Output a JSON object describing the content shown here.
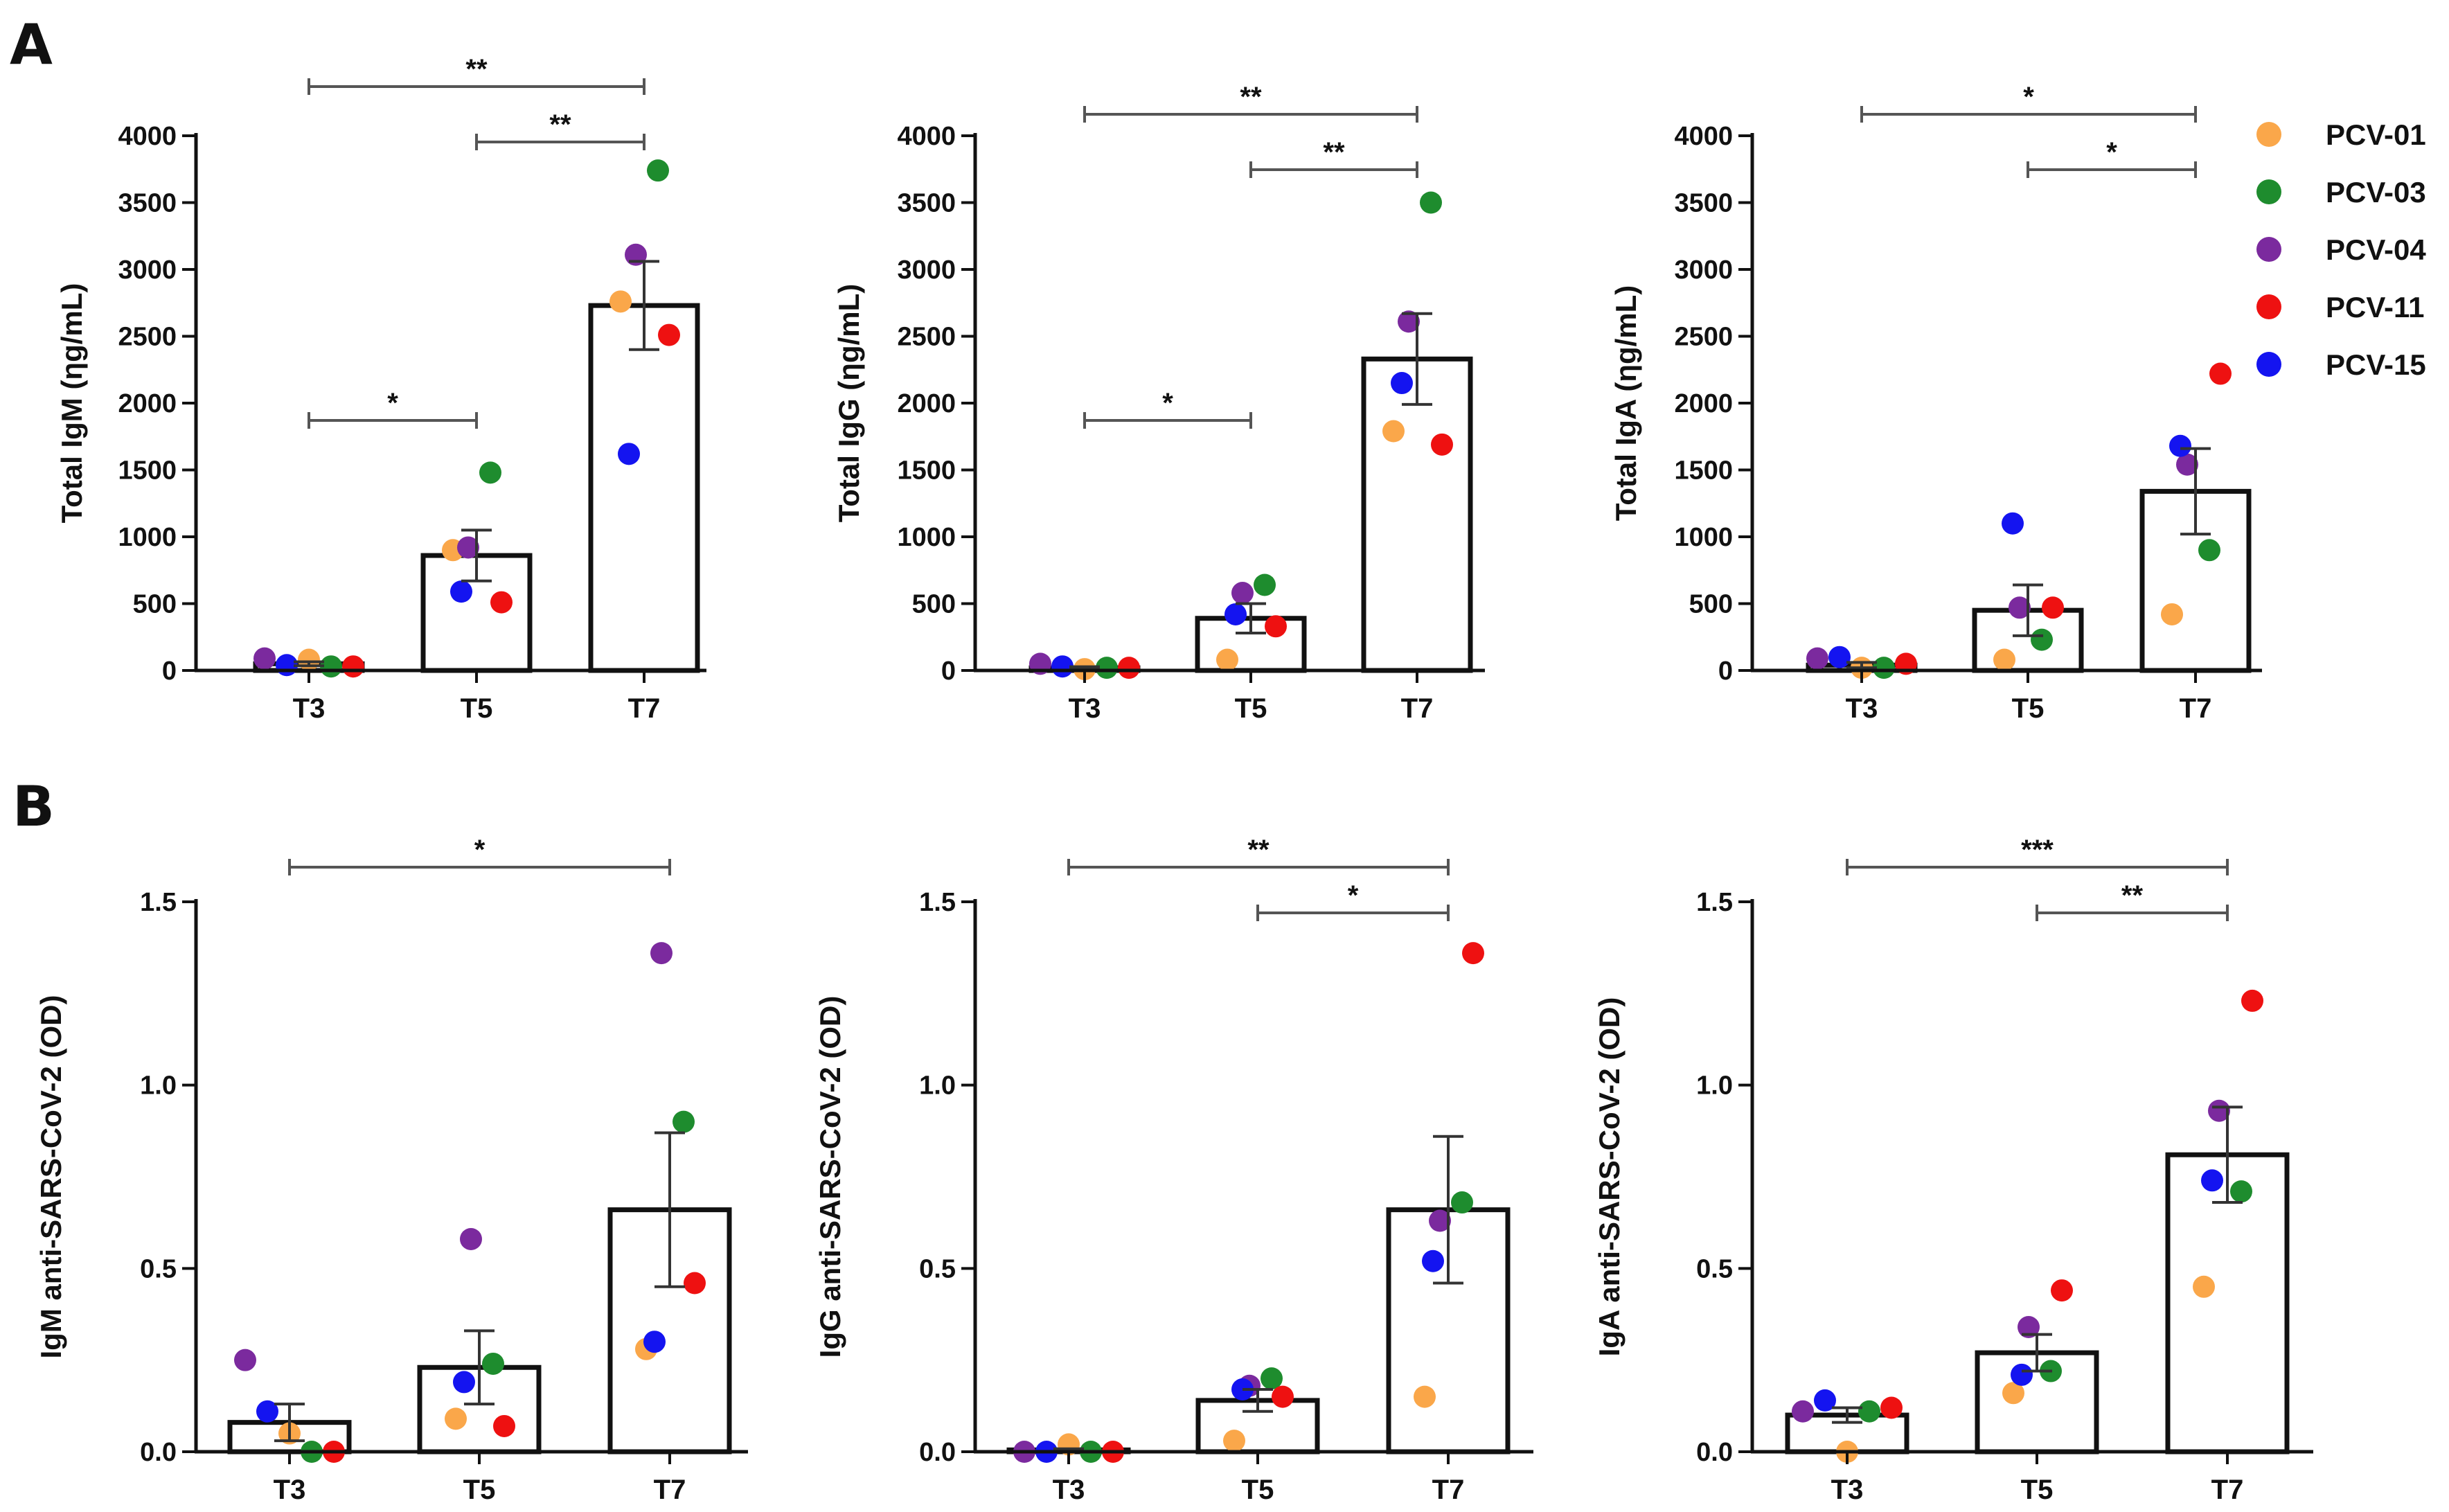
{
  "panel_labels": [
    "A",
    "B"
  ],
  "legend": [
    {
      "name": "PCV-01",
      "color": "#FAA74A"
    },
    {
      "name": "PCV-03",
      "color": "#1E8C2E"
    },
    {
      "name": "PCV-04",
      "color": "#7B2A9E"
    },
    {
      "name": "PCV-11",
      "color": "#EE1111"
    },
    {
      "name": "PCV-15",
      "color": "#1414F0"
    }
  ],
  "chart_data": [
    {
      "type": "bar",
      "panel": "A",
      "ylabel": "Total IgM (ηg/mL)",
      "categories": [
        "T3",
        "T5",
        "T7"
      ],
      "ylim": [
        0,
        4000
      ],
      "yticks": [
        0,
        500,
        1000,
        1500,
        2000,
        2500,
        3000,
        3500,
        4000
      ],
      "tick_labels": [
        "0",
        "500",
        "1000",
        "1500",
        "2000",
        "2500",
        "3000",
        "3500",
        "4000"
      ],
      "means": [
        50,
        860,
        2730
      ],
      "sem": [
        15,
        190,
        330
      ],
      "points": [
        {
          "PCV-01": 80,
          "PCV-03": 30,
          "PCV-04": 90,
          "PCV-11": 30,
          "PCV-15": 40
        },
        {
          "PCV-01": 900,
          "PCV-03": 1480,
          "PCV-04": 920,
          "PCV-11": 510,
          "PCV-15": 590
        },
        {
          "PCV-01": 2760,
          "PCV-03": 3740,
          "PCV-04": 3110,
          "PCV-11": 2510,
          "PCV-15": 1620
        }
      ],
      "significance": [
        {
          "from": "T3",
          "to": "T7",
          "label": "**"
        },
        {
          "from": "T5",
          "to": "T7",
          "label": "**"
        },
        {
          "from": "T3",
          "to": "T5",
          "label": "*"
        }
      ]
    },
    {
      "type": "bar",
      "panel": "A",
      "ylabel": "Total IgG (ηg/mL)",
      "categories": [
        "T3",
        "T5",
        "T7"
      ],
      "ylim": [
        0,
        4000
      ],
      "yticks": [
        0,
        500,
        1000,
        1500,
        2000,
        2500,
        3000,
        3500,
        4000
      ],
      "tick_labels": [
        "0",
        "500",
        "1000",
        "1500",
        "2000",
        "2500",
        "3000",
        "3500",
        "4000"
      ],
      "means": [
        20,
        390,
        2330
      ],
      "sem": [
        8,
        110,
        340
      ],
      "points": [
        {
          "PCV-01": 10,
          "PCV-03": 20,
          "PCV-04": 50,
          "PCV-11": 20,
          "PCV-15": 30
        },
        {
          "PCV-01": 80,
          "PCV-03": 640,
          "PCV-04": 580,
          "PCV-11": 330,
          "PCV-15": 420
        },
        {
          "PCV-01": 1790,
          "PCV-03": 3500,
          "PCV-04": 2610,
          "PCV-11": 1690,
          "PCV-15": 2150
        }
      ],
      "significance": [
        {
          "from": "T3",
          "to": "T7",
          "label": "**"
        },
        {
          "from": "T5",
          "to": "T7",
          "label": "**"
        },
        {
          "from": "T3",
          "to": "T5",
          "label": "*"
        }
      ]
    },
    {
      "type": "bar",
      "panel": "A",
      "ylabel": "Total IgA (ηg/mL)",
      "categories": [
        "T3",
        "T5",
        "T7"
      ],
      "ylim": [
        0,
        4000
      ],
      "yticks": [
        0,
        500,
        1000,
        1500,
        2000,
        2500,
        3000,
        3500,
        4000
      ],
      "tick_labels": [
        "0",
        "500",
        "1000",
        "1500",
        "2000",
        "2500",
        "3000",
        "3500",
        "4000"
      ],
      "means": [
        40,
        450,
        1340
      ],
      "sem": [
        20,
        190,
        320
      ],
      "points": [
        {
          "PCV-01": 20,
          "PCV-03": 20,
          "PCV-04": 90,
          "PCV-11": 50,
          "PCV-15": 100
        },
        {
          "PCV-01": 80,
          "PCV-03": 230,
          "PCV-04": 470,
          "PCV-11": 470,
          "PCV-15": 1100
        },
        {
          "PCV-01": 420,
          "PCV-03": 900,
          "PCV-04": 1540,
          "PCV-11": 2220,
          "PCV-15": 1680
        }
      ],
      "significance": [
        {
          "from": "T3",
          "to": "T7",
          "label": "*"
        },
        {
          "from": "T5",
          "to": "T7",
          "label": "*"
        }
      ]
    },
    {
      "type": "bar",
      "panel": "B",
      "ylabel": "IgM anti-SARS-CoV-2 (OD)",
      "categories": [
        "T3",
        "T5",
        "T7"
      ],
      "ylim": [
        0,
        1.5
      ],
      "yticks": [
        0,
        0.5,
        1.0,
        1.5
      ],
      "tick_labels": [
        "0.0",
        "0.5",
        "1.0",
        "1.5"
      ],
      "means": [
        0.08,
        0.23,
        0.66
      ],
      "sem": [
        0.05,
        0.1,
        0.21
      ],
      "points": [
        {
          "PCV-01": 0.05,
          "PCV-03": 0.0,
          "PCV-04": 0.25,
          "PCV-11": 0.0,
          "PCV-15": 0.11
        },
        {
          "PCV-01": 0.09,
          "PCV-03": 0.24,
          "PCV-04": 0.58,
          "PCV-11": 0.07,
          "PCV-15": 0.19
        },
        {
          "PCV-01": 0.28,
          "PCV-03": 0.9,
          "PCV-04": 1.36,
          "PCV-11": 0.46,
          "PCV-15": 0.3
        }
      ],
      "significance": [
        {
          "from": "T3",
          "to": "T7",
          "label": "*"
        }
      ]
    },
    {
      "type": "bar",
      "panel": "B",
      "ylabel": "IgG anti-SARS-CoV-2 (OD)",
      "categories": [
        "T3",
        "T5",
        "T7"
      ],
      "ylim": [
        0,
        1.5
      ],
      "yticks": [
        0,
        0.5,
        1.0,
        1.5
      ],
      "tick_labels": [
        "0.0",
        "0.5",
        "1.0",
        "1.5"
      ],
      "means": [
        0.005,
        0.14,
        0.66
      ],
      "sem": [
        0.003,
        0.03,
        0.2
      ],
      "points": [
        {
          "PCV-01": 0.02,
          "PCV-03": 0.0,
          "PCV-04": 0.0,
          "PCV-11": 0.0,
          "PCV-15": 0.0
        },
        {
          "PCV-01": 0.03,
          "PCV-03": 0.2,
          "PCV-04": 0.18,
          "PCV-11": 0.15,
          "PCV-15": 0.17
        },
        {
          "PCV-01": 0.15,
          "PCV-03": 0.68,
          "PCV-04": 0.63,
          "PCV-11": 1.36,
          "PCV-15": 0.52
        }
      ],
      "significance": [
        {
          "from": "T3",
          "to": "T7",
          "label": "**"
        },
        {
          "from": "T5",
          "to": "T7",
          "label": "*"
        }
      ]
    },
    {
      "type": "bar",
      "panel": "B",
      "ylabel": "IgA anti-SARS-CoV-2 (OD)",
      "categories": [
        "T3",
        "T5",
        "T7"
      ],
      "ylim": [
        0,
        1.5
      ],
      "yticks": [
        0,
        0.5,
        1.0,
        1.5
      ],
      "tick_labels": [
        "0.0",
        "0.5",
        "1.0",
        "1.5"
      ],
      "means": [
        0.1,
        0.27,
        0.81
      ],
      "sem": [
        0.02,
        0.05,
        0.13
      ],
      "points": [
        {
          "PCV-01": 0.0,
          "PCV-03": 0.11,
          "PCV-04": 0.11,
          "PCV-11": 0.12,
          "PCV-15": 0.14
        },
        {
          "PCV-01": 0.16,
          "PCV-03": 0.22,
          "PCV-04": 0.34,
          "PCV-11": 0.44,
          "PCV-15": 0.21
        },
        {
          "PCV-01": 0.45,
          "PCV-03": 0.71,
          "PCV-04": 0.93,
          "PCV-11": 1.23,
          "PCV-15": 0.74
        }
      ],
      "significance": [
        {
          "from": "T3",
          "to": "T7",
          "label": "***"
        },
        {
          "from": "T5",
          "to": "T7",
          "label": "**"
        }
      ]
    }
  ]
}
